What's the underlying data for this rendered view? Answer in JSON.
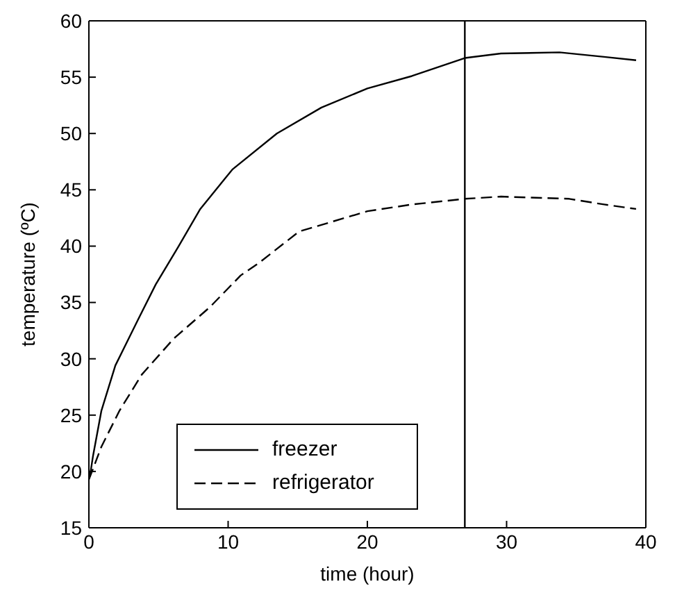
{
  "chart_data": {
    "type": "line",
    "xlabel": "time (hour)",
    "ylabel": "temperature (ºC)",
    "xlim": [
      0,
      40
    ],
    "ylim": [
      15,
      60
    ],
    "xticks": [
      0,
      10,
      20,
      30,
      40
    ],
    "yticks": [
      15,
      20,
      25,
      30,
      35,
      40,
      45,
      50,
      55,
      60
    ],
    "grid": false,
    "legend": "bottom left",
    "marker": "none",
    "ref_lines": [
      {
        "axis": "x",
        "value": 27,
        "color": "#000000"
      }
    ],
    "series": [
      {
        "name": "freezer",
        "color": "#000000",
        "line_style": "solid",
        "x": [
          0,
          0.1,
          0.3,
          0.9,
          1.9,
          3.5,
          4.8,
          6.4,
          8,
          10.3,
          13.5,
          16.7,
          20,
          23.2,
          27,
          29.6,
          33.8,
          37,
          39.3
        ],
        "values": [
          19.3,
          19.8,
          21.4,
          25.4,
          29.4,
          33.4,
          36.6,
          39.9,
          43.3,
          46.8,
          50.0,
          52.3,
          54.0,
          55.1,
          56.7,
          57.1,
          57.2,
          56.8,
          56.5
        ]
      },
      {
        "name": "refrigerator",
        "color": "#000000",
        "line_style": "dashed",
        "x": [
          0,
          0.1,
          0.9,
          2.2,
          3.8,
          6.1,
          8.7,
          10.9,
          12.2,
          15.1,
          20,
          23.2,
          27,
          29.6,
          34.5,
          37,
          39.3
        ],
        "values": [
          19.3,
          19.6,
          22.2,
          25.4,
          28.6,
          31.8,
          34.6,
          37.4,
          38.5,
          41.3,
          43.1,
          43.7,
          44.2,
          44.4,
          44.2,
          43.7,
          43.3
        ]
      }
    ]
  }
}
